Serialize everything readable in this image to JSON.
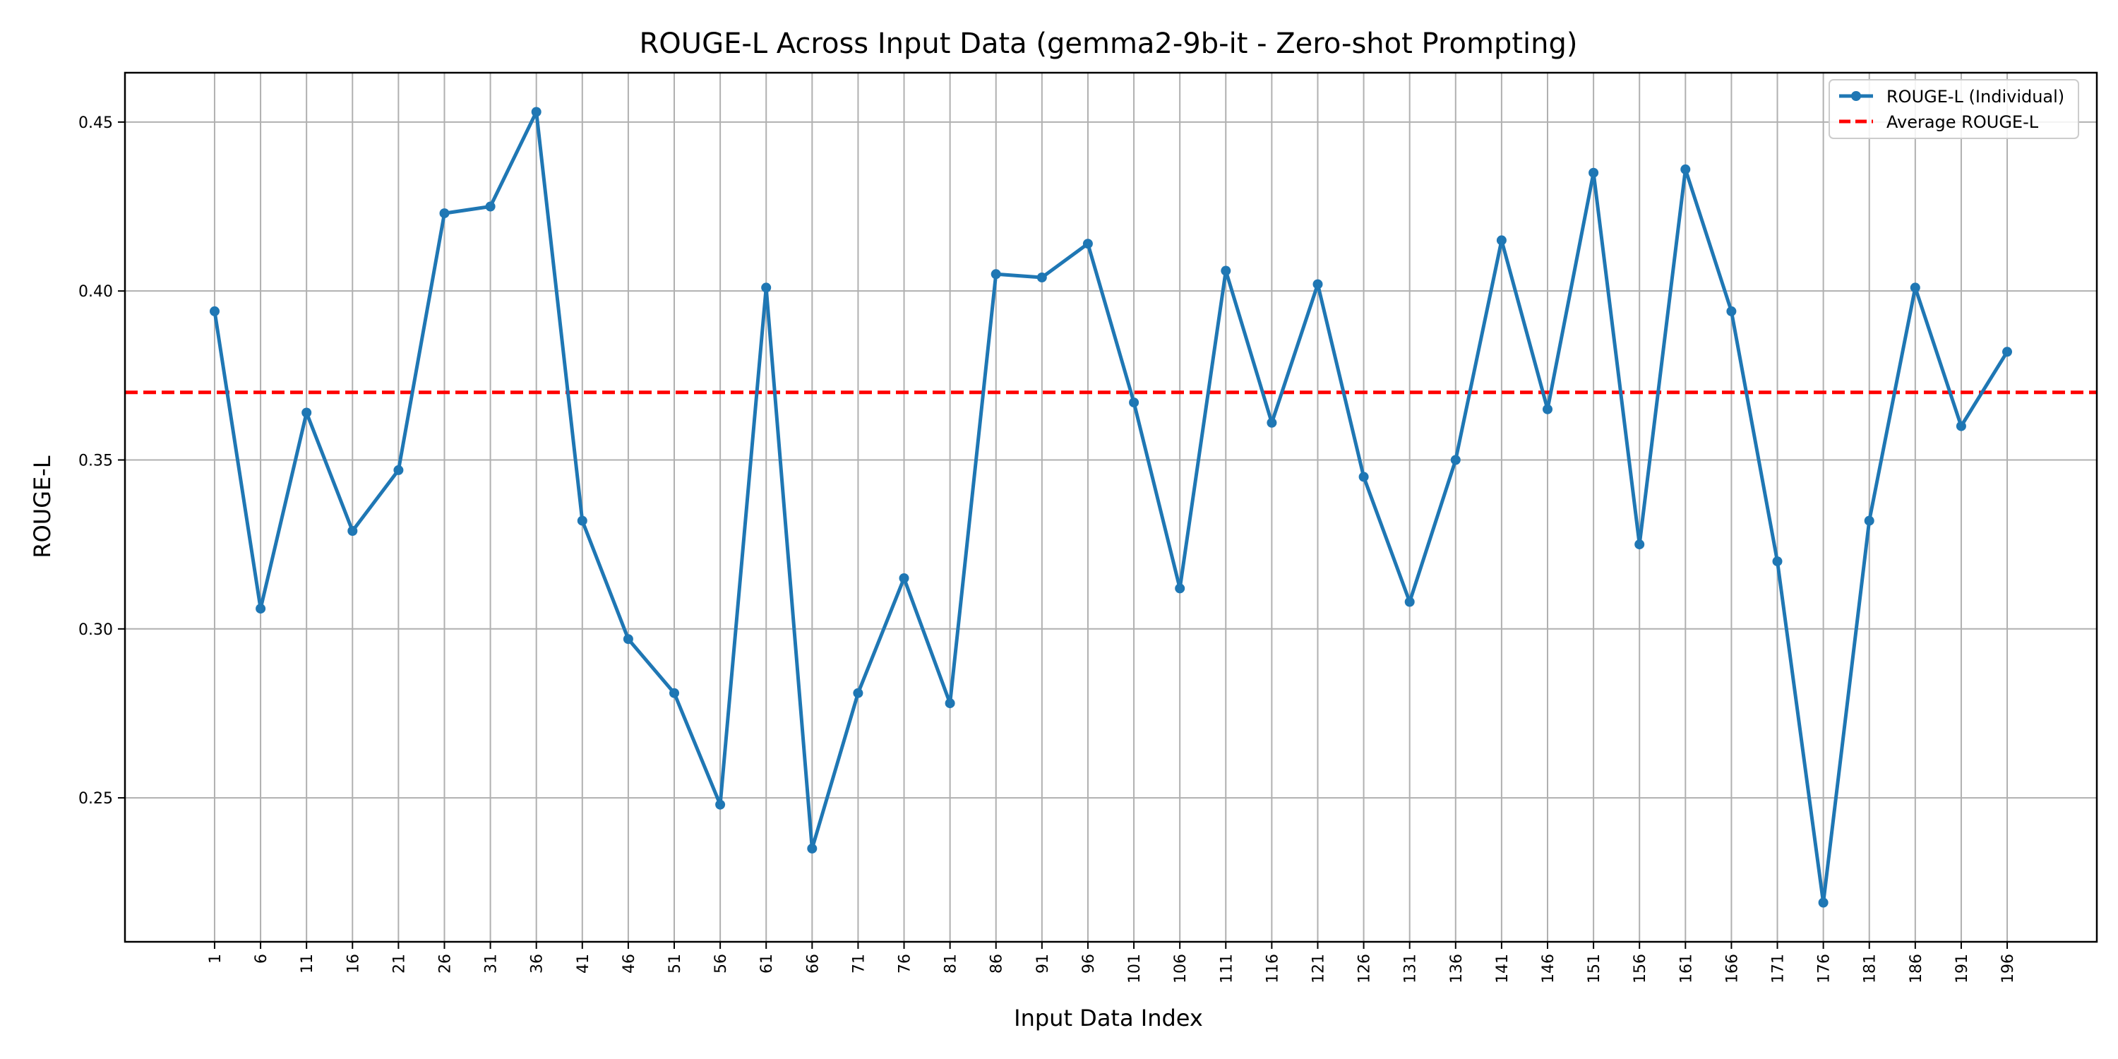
{
  "chart_data": {
    "type": "line",
    "title": "ROUGE-L Across Input Data (gemma2-9b-it - Zero-shot Prompting)",
    "xlabel": "Input Data Index",
    "ylabel": "ROUGE-L",
    "x": [
      1,
      6,
      11,
      16,
      21,
      26,
      31,
      36,
      41,
      46,
      51,
      56,
      61,
      66,
      71,
      76,
      81,
      86,
      91,
      96,
      101,
      106,
      111,
      116,
      121,
      126,
      131,
      136,
      141,
      146,
      151,
      156,
      161,
      166,
      171,
      176,
      181,
      186,
      191,
      196
    ],
    "series": [
      {
        "name": "ROUGE-L (Individual)",
        "color": "#1f77b4",
        "marker": "circle",
        "values": [
          0.394,
          0.306,
          0.364,
          0.329,
          0.347,
          0.423,
          0.425,
          0.453,
          0.332,
          0.297,
          0.281,
          0.248,
          0.401,
          0.235,
          0.281,
          0.315,
          0.278,
          0.405,
          0.404,
          0.414,
          0.367,
          0.312,
          0.406,
          0.361,
          0.402,
          0.345,
          0.308,
          0.35,
          0.415,
          0.365,
          0.435,
          0.325,
          0.436,
          0.394,
          0.32,
          0.219,
          0.332,
          0.401,
          0.36,
          0.382
        ]
      }
    ],
    "reference_line": {
      "name": "Average ROUGE-L",
      "value": 0.37,
      "color": "#ff0000",
      "style": "dashed"
    },
    "x_ticks": [
      "1",
      "6",
      "11",
      "16",
      "21",
      "26",
      "31",
      "36",
      "41",
      "46",
      "51",
      "56",
      "61",
      "66",
      "71",
      "76",
      "81",
      "86",
      "91",
      "96",
      "101",
      "106",
      "111",
      "116",
      "121",
      "126",
      "131",
      "136",
      "141",
      "146",
      "151",
      "156",
      "161",
      "166",
      "171",
      "176",
      "181",
      "186",
      "191",
      "196"
    ],
    "y_ticks": [
      "0.25",
      "0.30",
      "0.35",
      "0.40",
      "0.45"
    ],
    "xlim": [
      -8.75,
      205.75
    ],
    "ylim": [
      0.2074,
      0.4646
    ],
    "grid": true,
    "legend": {
      "placement": "top-right",
      "entries": [
        "ROUGE-L (Individual)",
        "Average ROUGE-L"
      ]
    }
  }
}
